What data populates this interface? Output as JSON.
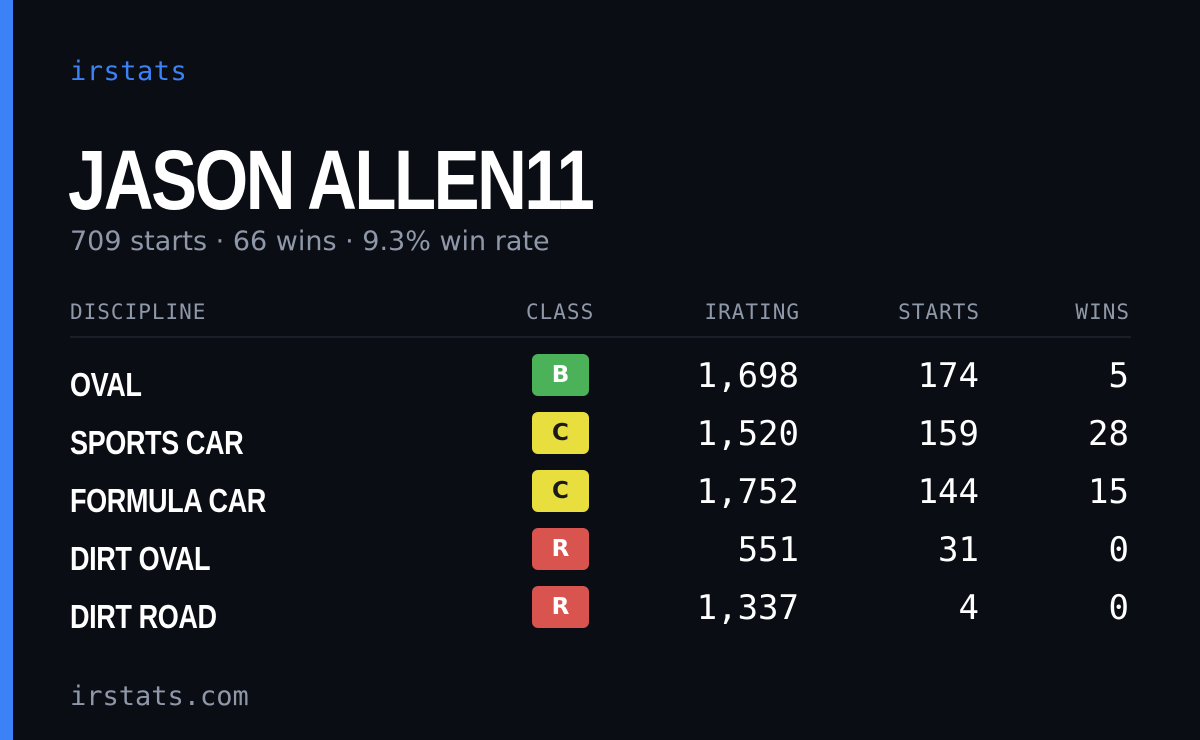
{
  "brand": "irstats",
  "driver": {
    "name": "JASON ALLEN11",
    "summary": "709 starts · 66 wins · 9.3% win rate"
  },
  "table": {
    "headers": {
      "discipline": "DISCIPLINE",
      "class": "CLASS",
      "irating": "IRATING",
      "starts": "STARTS",
      "wins": "WINS"
    },
    "rows": [
      {
        "discipline": "OVAL",
        "class": "B",
        "irating": "1,698",
        "starts": "174",
        "wins": "5"
      },
      {
        "discipline": "SPORTS CAR",
        "class": "C",
        "irating": "1,520",
        "starts": "159",
        "wins": "28"
      },
      {
        "discipline": "FORMULA CAR",
        "class": "C",
        "irating": "1,752",
        "starts": "144",
        "wins": "15"
      },
      {
        "discipline": "DIRT OVAL",
        "class": "R",
        "irating": "551",
        "starts": "31",
        "wins": "0"
      },
      {
        "discipline": "DIRT ROAD",
        "class": "R",
        "irating": "1,337",
        "starts": "4",
        "wins": "0"
      }
    ]
  },
  "footer": "irstats.com",
  "colors": {
    "background": "#0b0d14",
    "accent": "#3b82f6",
    "muted_text": "#8f98a8",
    "class_B": "#4cb25a",
    "class_C": "#e8de3e",
    "class_R": "#d9534f"
  }
}
